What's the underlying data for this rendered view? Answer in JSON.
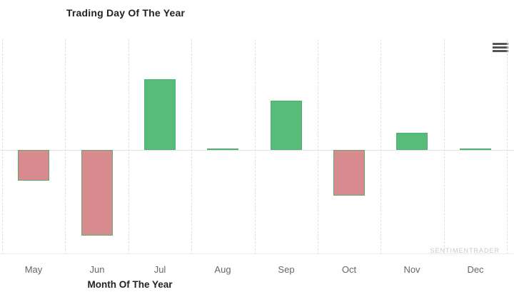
{
  "watermark": "SENTIMENTRADER",
  "menu": {
    "icon": "hamburger-menu-icon"
  },
  "chart_data": {
    "type": "bar",
    "title": "Trading Day Of The Year",
    "xlabel": "Month Of The Year",
    "ylabel": "",
    "categories": [
      "May",
      "Jun",
      "Jul",
      "Aug",
      "Sep",
      "Oct",
      "Nov",
      "Dec"
    ],
    "values": [
      -0.43,
      -1.2,
      0.99,
      0.02,
      0.69,
      -0.64,
      0.24,
      0.02
    ],
    "ylim": [
      -1.46,
      1.55
    ],
    "y_axis_labels_visible": false,
    "grid": "vertical-dashed",
    "legend": "none",
    "colors": {
      "positive_fill": "#57bb7a",
      "positive_border": "#4fae70",
      "negative_fill": "#d88b8e",
      "negative_border": "#61a86f",
      "gridline": "#e0e0e0",
      "zero_line": "#e3e3e3",
      "label_text": "#666666",
      "title_text": "#222222",
      "watermark_text": "#c9c9c9"
    }
  }
}
